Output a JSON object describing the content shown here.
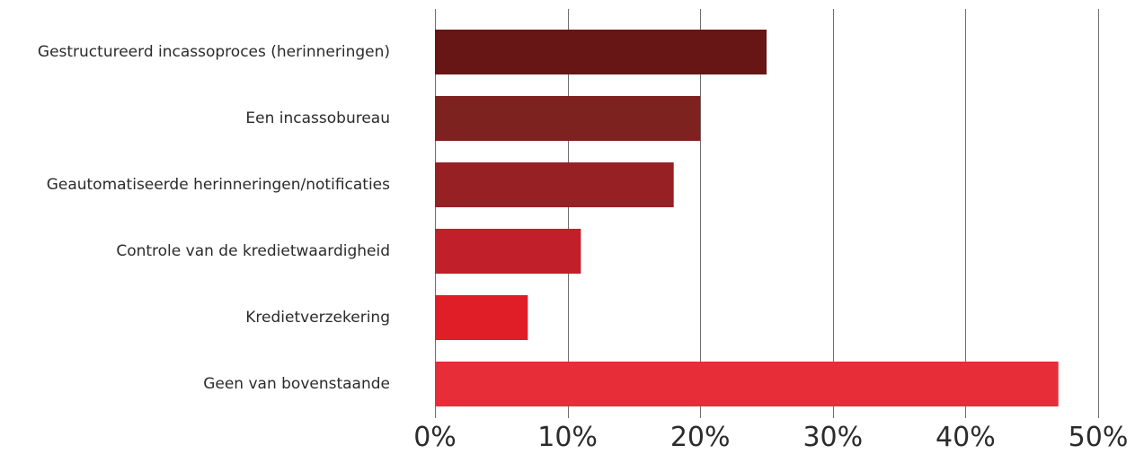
{
  "chart_data": {
    "type": "bar",
    "orientation": "horizontal",
    "categories": [
      "Gestructureerd incassoproces (herinneringen)",
      "Een incassobureau",
      "Geautomatiseerde herinneringen/notificaties",
      "Controle van de kredietwaardigheid",
      "Kredietverzekering",
      "Geen van bovenstaande"
    ],
    "values": [
      25,
      20,
      18,
      11,
      7,
      47
    ],
    "colors": [
      "#671515",
      "#7e2220",
      "#962023",
      "#c1202a",
      "#e01e27",
      "#e72d37"
    ],
    "xlim": [
      0,
      50
    ],
    "x_ticks": [
      0,
      10,
      20,
      30,
      40,
      50
    ],
    "x_tick_labels": [
      "0%",
      "10%",
      "20%",
      "30%",
      "40%",
      "50%"
    ],
    "grid": true,
    "title": "",
    "xlabel": "",
    "ylabel": ""
  }
}
